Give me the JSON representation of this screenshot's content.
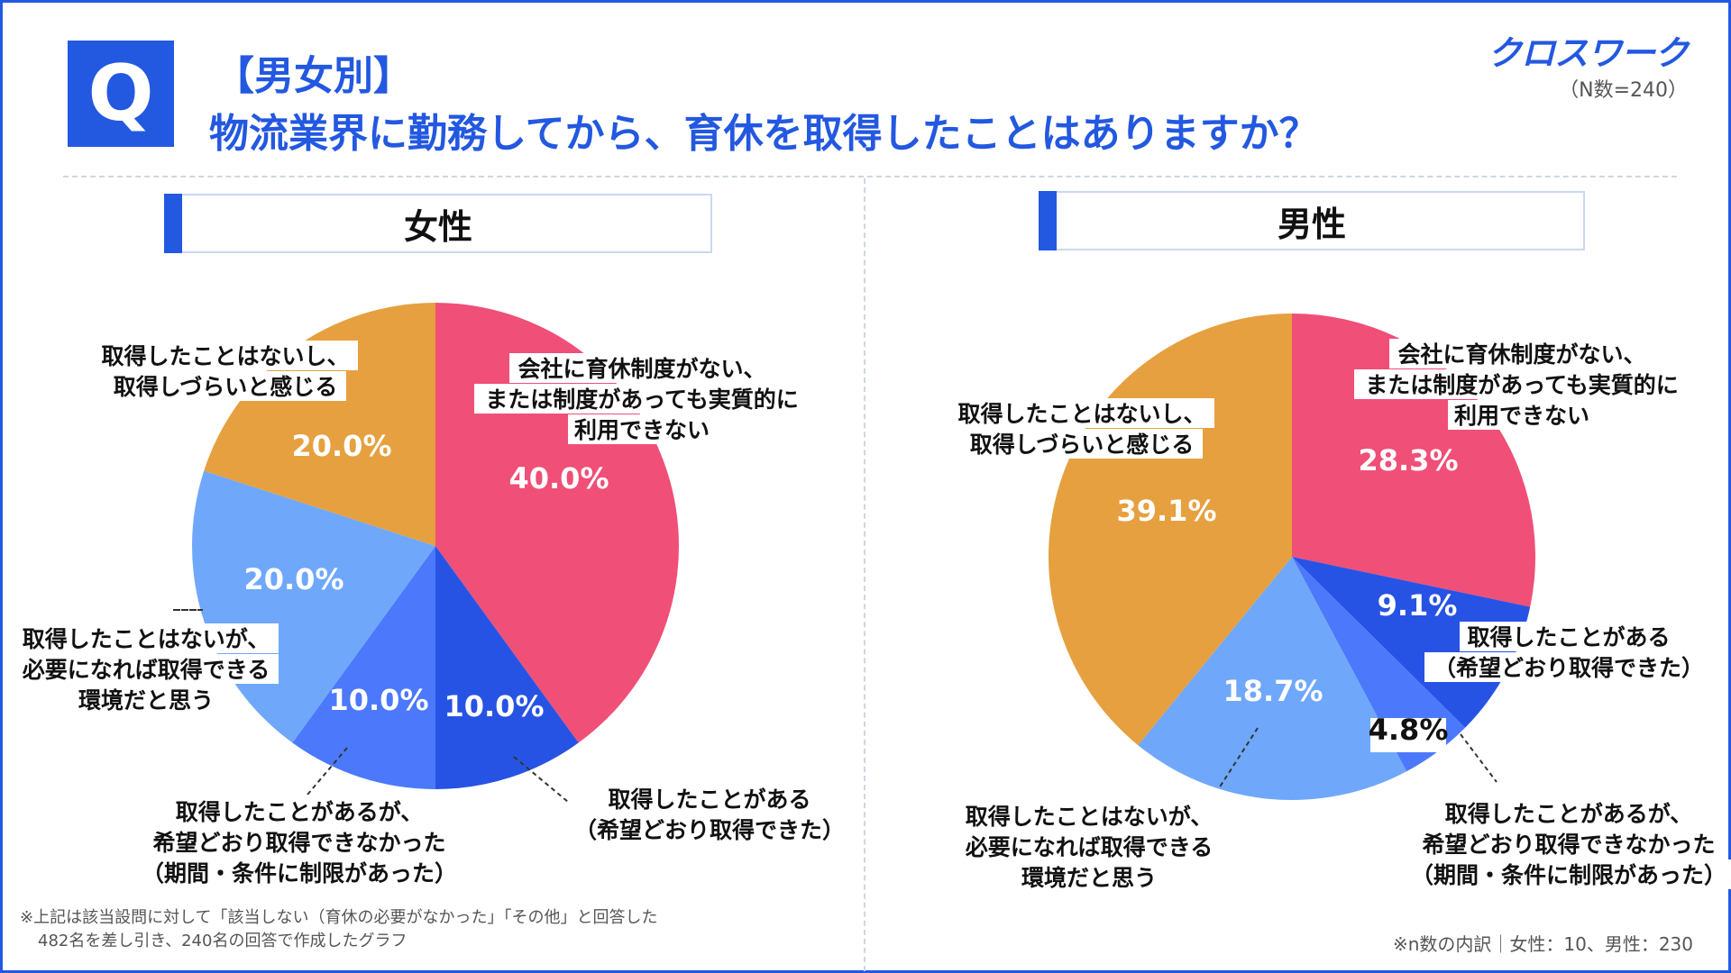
{
  "header": {
    "q_badge": "Q",
    "title_line1": "【男女別】",
    "title_line2": "物流業界に勤務してから、育休を取得したことはありますか？",
    "logo": "クロスワーク",
    "sample_size": "（N数=240）"
  },
  "colors": {
    "accent": "#2358e0",
    "slice_no_system": "#f04f77",
    "slice_got_as_wished": "#2753e4",
    "slice_got_limited": "#4c79fb",
    "slice_could_if_needed": "#6fa8fb",
    "slice_hard_to_take": "#e6a03f"
  },
  "chart_data": [
    {
      "type": "pie",
      "title": "女性",
      "categories": [
        "会社に育休制度がない、または制度があっても実質的に利用できない",
        "取得したことがある（希望どおり取得できた）",
        "取得したことがあるが、希望どおり取得できなかった（期間・条件に制限があった）",
        "取得したことはないが、必要になれば取得できる環境だと思う",
        "取得したことはないし、取得しづらいと感じる"
      ],
      "values": [
        40.0,
        10.0,
        10.0,
        20.0,
        20.0
      ],
      "value_labels": [
        "40.0%",
        "10.0%",
        "10.0%",
        "20.0%",
        "20.0%"
      ],
      "label_lines": [
        [
          "会社に育休制度がない、",
          "または制度があっても実質的に",
          "利用できない"
        ],
        [
          "取得したことがある",
          "（希望どおり取得できた）"
        ],
        [
          "取得したことがあるが、",
          "希望どおり取得できなかった",
          "（期間・条件に制限があった）"
        ],
        [
          "取得したことはないが、",
          "必要になれば取得できる",
          "環境だと思う"
        ],
        [
          "取得したことはないし、",
          "取得しづらいと感じる"
        ]
      ]
    },
    {
      "type": "pie",
      "title": "男性",
      "categories": [
        "会社に育休制度がない、または制度があっても実質的に利用できない",
        "取得したことがある（希望どおり取得できた）",
        "取得したことがあるが、希望どおり取得できなかった（期間・条件に制限があった）",
        "取得したことはないが、必要になれば取得できる環境だと思う",
        "取得したことはないし、取得しづらいと感じる"
      ],
      "values": [
        28.3,
        9.1,
        4.8,
        18.7,
        39.1
      ],
      "value_labels": [
        "28.3%",
        "9.1%",
        "4.8%",
        "18.7%",
        "39.1%"
      ],
      "label_lines": [
        [
          "会社に育休制度がない、",
          "または制度があっても実質的に",
          "利用できない"
        ],
        [
          "取得したことがある",
          "（希望どおり取得できた）"
        ],
        [
          "取得したことがあるが、",
          "希望どおり取得できなかった",
          "（期間・条件に制限があった）"
        ],
        [
          "取得したことはないが、",
          "必要になれば取得できる",
          "環境だと思う"
        ],
        [
          "取得したことはないし、",
          "取得しづらいと感じる"
        ]
      ]
    }
  ],
  "footnote": {
    "line1": "※上記は該当設問に対して「該当しない（育休の必要がなかった」「その他」と回答した",
    "line2": "482名を差し引き、240名の回答で作成したグラフ",
    "breakdown": "※n数の内訳｜女性：10、男性：230"
  }
}
